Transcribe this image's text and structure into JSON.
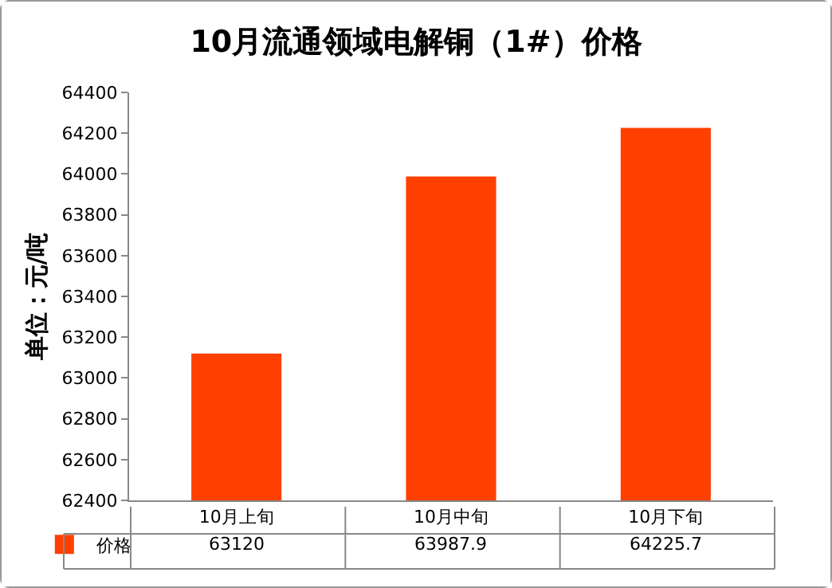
{
  "chart_data": {
    "type": "bar",
    "title": "10月流通领域电解铜（1#）价格",
    "ylabel": "单位：元/吨",
    "categories": [
      "10月上旬",
      "10月中旬",
      "10月下旬"
    ],
    "series": [
      {
        "name": "价格",
        "color": "#ff4000",
        "values": [
          63120,
          63987.9,
          64225.7
        ]
      }
    ],
    "ylim": [
      62400,
      64400
    ],
    "yticks": [
      62400,
      62600,
      62800,
      63000,
      63200,
      63400,
      63600,
      63800,
      64000,
      64200,
      64400
    ],
    "grid": false,
    "legend": "bottom left",
    "data_labels": true
  }
}
